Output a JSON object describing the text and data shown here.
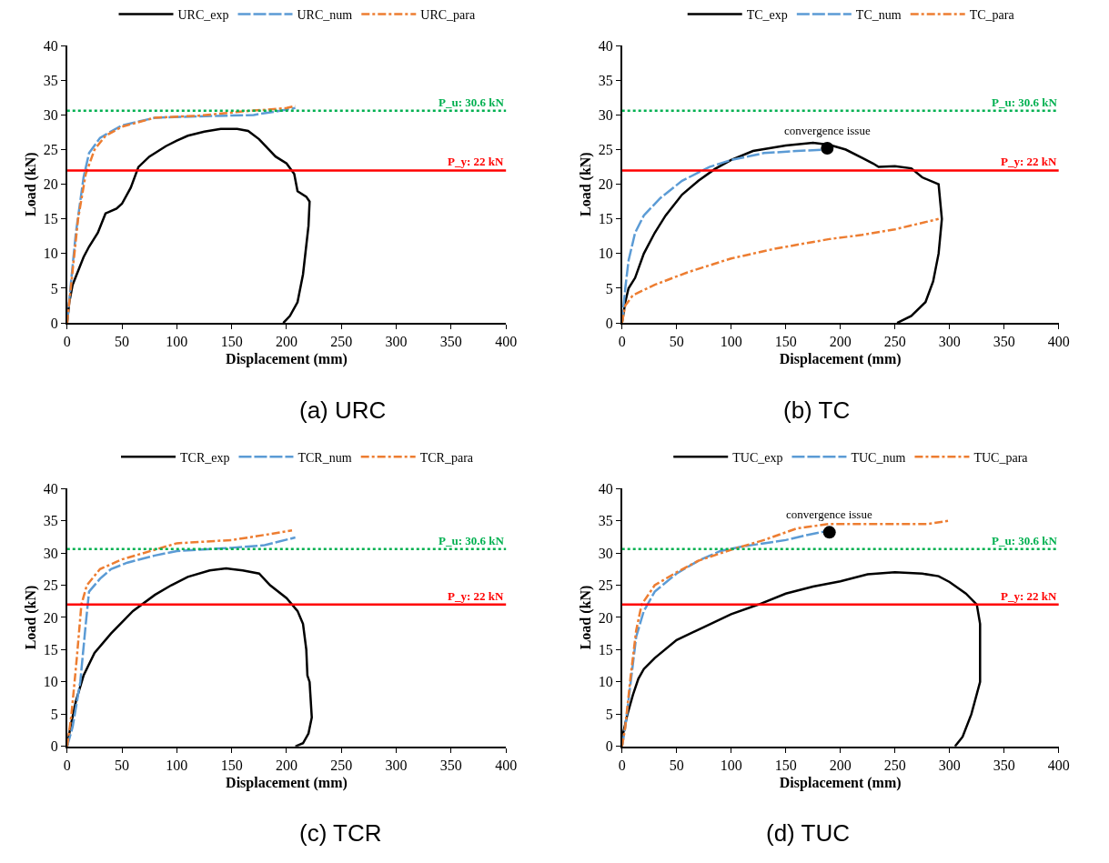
{
  "chart_data": [
    {
      "type": "line",
      "title": "(a) URC",
      "xlabel": "Displacement (mm)",
      "ylabel": "Load (kN)",
      "xlim": [
        0,
        400
      ],
      "xticks": [
        0,
        50,
        100,
        150,
        200,
        250,
        300,
        350,
        400
      ],
      "ylim": [
        0,
        40
      ],
      "yticks": [
        0,
        5,
        10,
        15,
        20,
        25,
        30,
        35,
        40
      ],
      "legend": "top",
      "marker": "none",
      "series": [
        {
          "name": "URC_exp",
          "color": "#000000",
          "line_style": "solid",
          "x": [
            0,
            2,
            5,
            10,
            15,
            20,
            28,
            35,
            38,
            45,
            50,
            58,
            65,
            75,
            90,
            100,
            110,
            125,
            140,
            155,
            165,
            175,
            190,
            200,
            207,
            210,
            218,
            221,
            220,
            215,
            210,
            203,
            197
          ],
          "values": [
            0,
            3,
            5.5,
            7.5,
            9.5,
            11,
            13,
            15.8,
            16,
            16.5,
            17.2,
            19.5,
            22.5,
            24,
            25.5,
            26.3,
            27,
            27.6,
            28,
            28,
            27.7,
            26.5,
            24,
            23,
            21.5,
            19,
            18.2,
            17.5,
            14,
            7,
            3,
            1,
            0
          ]
        },
        {
          "name": "URC_num",
          "color": "#5b9bd5",
          "line_style": "dashed",
          "x": [
            0,
            3,
            8,
            15,
            20,
            30,
            50,
            80,
            120,
            170,
            190,
            208
          ],
          "values": [
            0,
            5,
            13,
            21,
            24.5,
            26.7,
            28.5,
            29.6,
            29.8,
            30,
            30.5,
            31
          ]
        },
        {
          "name": "URC_para",
          "color": "#ed7d31",
          "line_style": "dashdot",
          "x": [
            0,
            4,
            10,
            17,
            25,
            35,
            50,
            80,
            120,
            160,
            200,
            208
          ],
          "values": [
            0,
            6,
            15,
            21.5,
            25,
            27,
            28.3,
            29.6,
            29.9,
            30.5,
            31,
            31.3
          ]
        }
      ],
      "ref_lines": [
        {
          "axis": "y",
          "value": 30.6,
          "label": "P_u: 30.6 kN",
          "color": "#00b050",
          "line_style": "dotted"
        },
        {
          "axis": "y",
          "value": 22,
          "label": "P_y: 22 kN",
          "color": "#ff0000",
          "line_style": "solid"
        }
      ]
    },
    {
      "type": "line",
      "title": "(b) TC",
      "xlabel": "Displacement (mm)",
      "ylabel": "Load (kN)",
      "xlim": [
        0,
        400
      ],
      "xticks": [
        0,
        50,
        100,
        150,
        200,
        250,
        300,
        350,
        400
      ],
      "ylim": [
        0,
        40
      ],
      "yticks": [
        0,
        5,
        10,
        15,
        20,
        25,
        30,
        35,
        40
      ],
      "legend": "top",
      "marker": "none",
      "series": [
        {
          "name": "TC_exp",
          "color": "#000000",
          "line_style": "solid",
          "x": [
            0,
            3,
            6,
            12,
            20,
            30,
            40,
            55,
            70,
            85,
            100,
            120,
            150,
            175,
            190,
            205,
            220,
            230,
            235,
            250,
            265,
            275,
            290,
            293,
            290,
            285,
            278,
            265,
            252
          ],
          "values": [
            0,
            3,
            5,
            6.5,
            10,
            13,
            15.5,
            18.5,
            20.5,
            22.2,
            23.5,
            24.8,
            25.6,
            26,
            25.7,
            25,
            23.8,
            23,
            22.5,
            22.6,
            22.3,
            21,
            20,
            15,
            10,
            6,
            3,
            1,
            0
          ]
        },
        {
          "name": "TC_num",
          "color": "#5b9bd5",
          "line_style": "dashed",
          "x": [
            0,
            3,
            6,
            12,
            20,
            35,
            55,
            80,
            100,
            130,
            160,
            188
          ],
          "values": [
            0,
            5,
            9,
            13,
            15.5,
            18,
            20.5,
            22.5,
            23.5,
            24.5,
            24.8,
            25
          ]
        },
        {
          "name": "TC_para",
          "color": "#ed7d31",
          "line_style": "dashdot",
          "x": [
            0,
            3,
            10,
            30,
            60,
            100,
            140,
            190,
            220,
            250,
            290
          ],
          "values": [
            0,
            2.5,
            4,
            5.5,
            7.3,
            9.3,
            10.7,
            12.1,
            12.7,
            13.5,
            15
          ]
        },
        {
          "type": "scatter",
          "color": "#000000",
          "marker": "circle",
          "x": [
            188
          ],
          "values": [
            25.2
          ]
        }
      ],
      "annotations": [
        {
          "text": "convergence issue",
          "x": 188,
          "y": 25.2
        }
      ],
      "ref_lines": [
        {
          "axis": "y",
          "value": 30.6,
          "label": "P_u: 30.6 kN",
          "color": "#00b050",
          "line_style": "dotted"
        },
        {
          "axis": "y",
          "value": 22,
          "label": "P_y: 22 kN",
          "color": "#ff0000",
          "line_style": "solid"
        }
      ]
    },
    {
      "type": "line",
      "title": "(c) TCR",
      "xlabel": "Displacement (mm)",
      "ylabel": "Load (kN)",
      "xlim": [
        0,
        400
      ],
      "xticks": [
        0,
        50,
        100,
        150,
        200,
        250,
        300,
        350,
        400
      ],
      "ylim": [
        0,
        40
      ],
      "yticks": [
        0,
        5,
        10,
        15,
        20,
        25,
        30,
        35,
        40
      ],
      "legend": "top",
      "marker": "none",
      "series": [
        {
          "name": "TCR_exp",
          "color": "#000000",
          "line_style": "solid",
          "x": [
            0,
            3,
            8,
            15,
            25,
            40,
            60,
            80,
            95,
            110,
            130,
            145,
            160,
            175,
            185,
            200,
            210,
            215,
            218,
            219,
            221,
            223,
            220,
            215,
            208
          ],
          "values": [
            0,
            3,
            7,
            11,
            14.5,
            17.5,
            21,
            23.5,
            25,
            26.3,
            27.3,
            27.6,
            27.3,
            26.8,
            25,
            23,
            21,
            19,
            15,
            11,
            10,
            4.5,
            2,
            0.5,
            0
          ]
        },
        {
          "name": "TCR_num",
          "color": "#5b9bd5",
          "line_style": "dashed",
          "x": [
            0,
            5,
            12,
            17,
            20,
            30,
            40,
            55,
            80,
            100,
            150,
            180,
            208
          ],
          "values": [
            0,
            3,
            10,
            19,
            24,
            26,
            27.5,
            28.5,
            29.6,
            30.3,
            30.8,
            31.2,
            32.4
          ]
        },
        {
          "name": "TCR_para",
          "color": "#ed7d31",
          "line_style": "dashdot",
          "x": [
            0,
            4,
            9,
            13,
            18,
            30,
            50,
            80,
            100,
            150,
            180,
            205
          ],
          "values": [
            0,
            5,
            14,
            22,
            25,
            27.5,
            29,
            30.5,
            31.5,
            32,
            32.8,
            33.5
          ]
        }
      ],
      "ref_lines": [
        {
          "axis": "y",
          "value": 30.6,
          "label": "P_u: 30.6 kN",
          "color": "#00b050",
          "line_style": "dotted"
        },
        {
          "axis": "y",
          "value": 22,
          "label": "P_y: 22 kN",
          "color": "#ff0000",
          "line_style": "solid"
        }
      ]
    },
    {
      "type": "line",
      "title": "(d) TUC",
      "xlabel": "Displacement (mm)",
      "ylabel": "Load (kN)",
      "xlim": [
        0,
        400
      ],
      "xticks": [
        0,
        50,
        100,
        150,
        200,
        250,
        300,
        350,
        400
      ],
      "ylim": [
        0,
        40
      ],
      "yticks": [
        0,
        5,
        10,
        15,
        20,
        25,
        30,
        35,
        40
      ],
      "legend": "top",
      "marker": "none",
      "series": [
        {
          "name": "TUC_exp",
          "color": "#000000",
          "line_style": "solid",
          "x": [
            0,
            1,
            5,
            10,
            15,
            20,
            30,
            50,
            75,
            100,
            125,
            150,
            175,
            200,
            225,
            250,
            275,
            290,
            300,
            315,
            325,
            328,
            328,
            320,
            312,
            305
          ],
          "values": [
            0,
            2,
            5,
            8,
            10.5,
            12,
            13.7,
            16.5,
            18.5,
            20.5,
            22,
            23.7,
            24.8,
            25.6,
            26.7,
            27,
            26.8,
            26.4,
            25.5,
            23.7,
            22,
            19,
            10,
            5,
            1.5,
            0
          ]
        },
        {
          "name": "TUC_num",
          "color": "#5b9bd5",
          "line_style": "dashed",
          "x": [
            0,
            3,
            8,
            13,
            20,
            30,
            50,
            70,
            90,
            110,
            130,
            150,
            170,
            185
          ],
          "values": [
            0,
            3,
            10,
            17,
            21,
            24,
            26.8,
            28.8,
            30.3,
            31,
            31.5,
            32,
            32.8,
            33.3
          ]
        },
        {
          "name": "TUC_para",
          "color": "#ed7d31",
          "line_style": "dashdot",
          "x": [
            0,
            3,
            8,
            13,
            18,
            30,
            50,
            70,
            100,
            130,
            160,
            190,
            220,
            260,
            280,
            300
          ],
          "values": [
            0,
            3,
            11,
            18,
            22,
            25,
            27,
            28.8,
            30.5,
            32,
            33.8,
            34.5,
            34.5,
            34.5,
            34.5,
            35
          ]
        },
        {
          "type": "scatter",
          "color": "#000000",
          "marker": "circle",
          "x": [
            190
          ],
          "values": [
            33.2
          ]
        }
      ],
      "annotations": [
        {
          "text": "convergence issue",
          "x": 190,
          "y": 33.2
        }
      ],
      "ref_lines": [
        {
          "axis": "y",
          "value": 30.6,
          "label": "P_u: 30.6 kN",
          "color": "#00b050",
          "line_style": "dotted"
        },
        {
          "axis": "y",
          "value": 22,
          "label": "P_y: 22 kN",
          "color": "#ff0000",
          "line_style": "solid"
        }
      ]
    }
  ]
}
